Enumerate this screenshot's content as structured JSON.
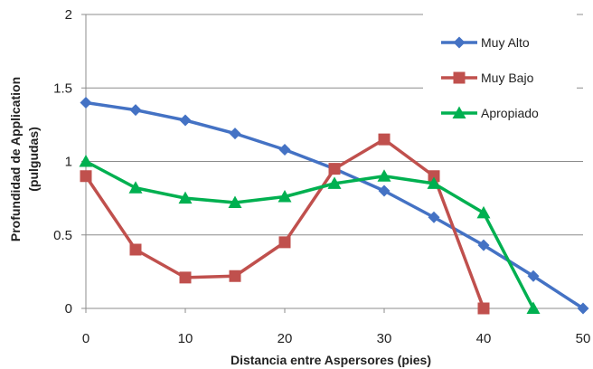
{
  "chart_data": {
    "type": "line",
    "xlabel": "Distancia entre Aspersores (pies)",
    "ylabel_line1": "Profundidad de Application",
    "ylabel_line2": "(pulgudas)",
    "xlim": [
      0,
      50
    ],
    "ylim": [
      0,
      2
    ],
    "x_ticks": [
      "0",
      "10",
      "20",
      "30",
      "40",
      "50"
    ],
    "y_ticks": [
      "0",
      "0.5",
      "1",
      "1.5",
      "2"
    ],
    "grid": "horizontal",
    "legend_position": "top-right",
    "series": [
      {
        "name": "Muy Alto",
        "color": "#4472C4",
        "marker": "diamond",
        "x": [
          0,
          5,
          10,
          15,
          20,
          25,
          30,
          35,
          40,
          45,
          50
        ],
        "y": [
          1.4,
          1.35,
          1.28,
          1.19,
          1.08,
          0.95,
          0.8,
          0.62,
          0.43,
          0.22,
          0.0
        ]
      },
      {
        "name": "Muy Bajo",
        "color": "#C0504D",
        "marker": "square",
        "x": [
          0,
          5,
          10,
          15,
          20,
          25,
          30,
          35,
          40
        ],
        "y": [
          0.9,
          0.4,
          0.21,
          0.22,
          0.45,
          0.95,
          1.15,
          0.9,
          0.0
        ]
      },
      {
        "name": "Apropiado",
        "color": "#00B050",
        "marker": "triangle",
        "x": [
          0,
          5,
          10,
          15,
          20,
          25,
          30,
          35,
          40,
          45
        ],
        "y": [
          1.0,
          0.82,
          0.75,
          0.72,
          0.76,
          0.85,
          0.9,
          0.85,
          0.65,
          0.0
        ]
      }
    ]
  }
}
